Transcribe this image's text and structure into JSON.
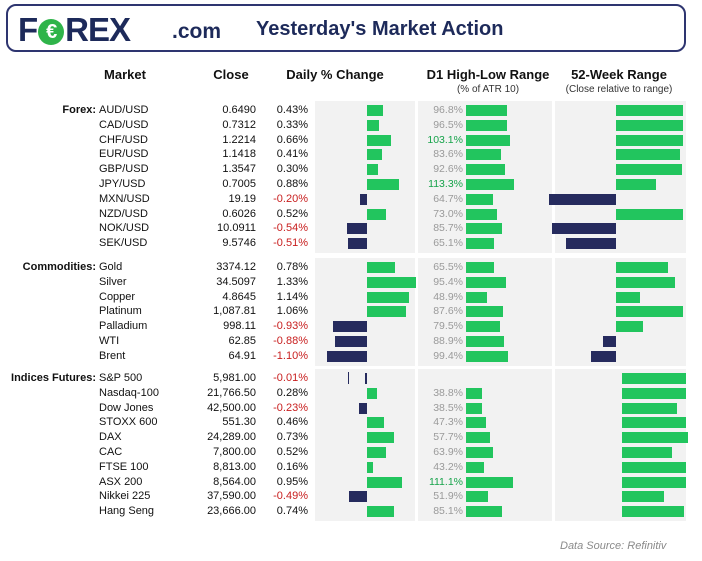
{
  "header": {
    "logo_text": "FOREX",
    "logo_tld": ".com",
    "title": "Yesterday's Market Action"
  },
  "columns": {
    "market": "Market",
    "close": "Close",
    "daily": "Daily % Change",
    "range": "D1 High-Low Range",
    "range_sub": "(% of ATR 10)",
    "week52": "52-Week Range",
    "week52_sub": "(Close relative to range)"
  },
  "source": "Data Source: Refinitiv",
  "colors": {
    "positive": "#22c55e",
    "negative": "#262b5e",
    "range_bar": "#22c55e",
    "range_text": "#9a9a9a",
    "range_text_hi": "#16a34a",
    "neg_text": "#c81e1e"
  },
  "chart_data": {
    "type": "table",
    "groups": [
      {
        "name": "Forex:",
        "rows": [
          {
            "market": "AUD/USD",
            "close": "0.6490",
            "change": "0.43%",
            "change_val": 0.43,
            "range": "96.8%",
            "range_val": 96.8,
            "w52": 1.0
          },
          {
            "market": "CAD/USD",
            "close": "0.7312",
            "change": "0.33%",
            "change_val": 0.33,
            "range": "96.5%",
            "range_val": 96.5,
            "w52": 1.0
          },
          {
            "market": "CHF/USD",
            "close": "1.2214",
            "change": "0.66%",
            "change_val": 0.66,
            "range": "103.1%",
            "range_val": 103.1,
            "w52": 1.0
          },
          {
            "market": "EUR/USD",
            "close": "1.1418",
            "change": "0.41%",
            "change_val": 0.41,
            "range": "83.6%",
            "range_val": 83.6,
            "w52": 0.95
          },
          {
            "market": "GBP/USD",
            "close": "1.3547",
            "change": "0.30%",
            "change_val": 0.3,
            "range": "92.6%",
            "range_val": 92.6,
            "w52": 0.98
          },
          {
            "market": "JPY/USD",
            "close": "0.7005",
            "change": "0.88%",
            "change_val": 0.88,
            "range": "113.3%",
            "range_val": 113.3,
            "w52": 0.6
          },
          {
            "market": "MXN/USD",
            "close": "19.19",
            "change": "-0.20%",
            "change_val": -0.2,
            "range": "64.7%",
            "range_val": 64.7,
            "w52": -1.0
          },
          {
            "market": "NZD/USD",
            "close": "0.6026",
            "change": "0.52%",
            "change_val": 0.52,
            "range": "73.0%",
            "range_val": 73.0,
            "w52": 1.0
          },
          {
            "market": "NOK/USD",
            "close": "10.0911",
            "change": "-0.54%",
            "change_val": -0.54,
            "range": "85.7%",
            "range_val": 85.7,
            "w52": -0.96
          },
          {
            "market": "SEK/USD",
            "close": "9.5746",
            "change": "-0.51%",
            "change_val": -0.51,
            "range": "65.1%",
            "range_val": 65.1,
            "w52": -0.75
          }
        ]
      },
      {
        "name": "Commodities:",
        "rows": [
          {
            "market": "Gold",
            "close": "3374.12",
            "change": "0.78%",
            "change_val": 0.78,
            "range": "65.5%",
            "range_val": 65.5,
            "w52": 0.77
          },
          {
            "market": "Silver",
            "close": "34.5097",
            "change": "1.33%",
            "change_val": 1.33,
            "range": "95.4%",
            "range_val": 95.4,
            "w52": 0.88
          },
          {
            "market": "Copper",
            "close": "4.8645",
            "change": "1.14%",
            "change_val": 1.14,
            "range": "48.9%",
            "range_val": 48.9,
            "w52": 0.36
          },
          {
            "market": "Platinum",
            "close": "1,087.81",
            "change": "1.06%",
            "change_val": 1.06,
            "range": "87.6%",
            "range_val": 87.6,
            "w52": 1.0
          },
          {
            "market": "Palladium",
            "close": "998.11",
            "change": "-0.93%",
            "change_val": -0.93,
            "range": "79.5%",
            "range_val": 79.5,
            "w52": 0.4
          },
          {
            "market": "WTI",
            "close": "62.85",
            "change": "-0.88%",
            "change_val": -0.88,
            "range": "88.9%",
            "range_val": 88.9,
            "w52": -0.2
          },
          {
            "market": "Brent",
            "close": "64.91",
            "change": "-1.10%",
            "change_val": -1.1,
            "range": "99.4%",
            "range_val": 99.4,
            "w52": -0.37
          }
        ]
      },
      {
        "name": "Indices Futures:",
        "rows": [
          {
            "market": "S&P 500",
            "close": "5,981.00",
            "change": "-0.01%",
            "change_val": -0.01,
            "range": "",
            "range_val": 0,
            "w52": 0.96
          },
          {
            "market": "Nasdaq-100",
            "close": "21,766.50",
            "change": "0.28%",
            "change_val": 0.28,
            "range": "38.8%",
            "range_val": 38.8,
            "w52": 0.96
          },
          {
            "market": "Dow Jones",
            "close": "42,500.00",
            "change": "-0.23%",
            "change_val": -0.23,
            "range": "38.5%",
            "range_val": 38.5,
            "w52": 0.82
          },
          {
            "market": "STOXX 600",
            "close": "551.30",
            "change": "0.46%",
            "change_val": 0.46,
            "range": "47.3%",
            "range_val": 47.3,
            "w52": 0.96
          },
          {
            "market": "DAX",
            "close": "24,289.00",
            "change": "0.73%",
            "change_val": 0.73,
            "range": "57.7%",
            "range_val": 57.7,
            "w52": 0.98
          },
          {
            "market": "CAC",
            "close": "7,800.00",
            "change": "0.52%",
            "change_val": 0.52,
            "range": "63.9%",
            "range_val": 63.9,
            "w52": 0.75
          },
          {
            "market": "FTSE 100",
            "close": "8,813.00",
            "change": "0.16%",
            "change_val": 0.16,
            "range": "43.2%",
            "range_val": 43.2,
            "w52": 0.96
          },
          {
            "market": "ASX 200",
            "close": "8,564.00",
            "change": "0.95%",
            "change_val": 0.95,
            "range": "111.1%",
            "range_val": 111.1,
            "w52": 0.96
          },
          {
            "market": "Nikkei 225",
            "close": "37,590.00",
            "change": "-0.49%",
            "change_val": -0.49,
            "range": "51.9%",
            "range_val": 51.9,
            "w52": 0.62
          },
          {
            "market": "Hang Seng",
            "close": "23,666.00",
            "change": "0.74%",
            "change_val": 0.74,
            "range": "85.1%",
            "range_val": 85.1,
            "w52": 0.93
          }
        ]
      }
    ]
  }
}
